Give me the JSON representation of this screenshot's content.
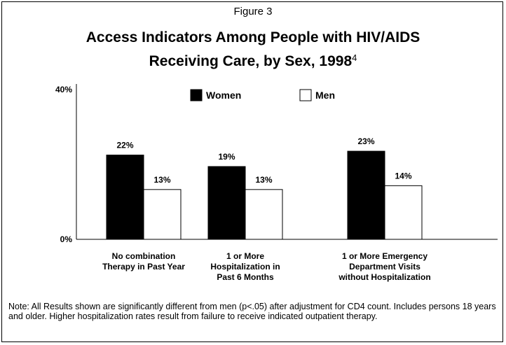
{
  "figure_label": "Figure 3",
  "title_line1": "Access Indicators Among People with HIV/AIDS",
  "title_line2": "Receiving Care, by Sex, 1998",
  "title_superscript": "4",
  "note": "Note: All Results shown are significantly different from men (p<.05) after adjustment for CD4 count.  Includes persons 18 years and older.  Higher hospitalization rates result from failure to receive indicated outpatient therapy.",
  "colors": {
    "women": "#000000",
    "men": "#ffffff",
    "axis": "#000000"
  },
  "chart_data": {
    "type": "bar",
    "categories": [
      [
        "No combination",
        "Therapy in Past Year"
      ],
      [
        "1 or More",
        "Hospitalization in",
        "Past 6 Months"
      ],
      [
        "1 or More Emergency",
        "Department Visits",
        "without Hospitalization"
      ]
    ],
    "series": [
      {
        "name": "Women",
        "values": [
          22,
          19,
          23
        ],
        "labels": [
          "22%",
          "19%",
          "23%"
        ]
      },
      {
        "name": "Men",
        "values": [
          13,
          13,
          14
        ],
        "labels": [
          "13%",
          "13%",
          "14%"
        ]
      }
    ],
    "ylim": [
      0,
      40
    ],
    "yticks": [
      "0%",
      "40%"
    ],
    "legend": "top",
    "grid": false,
    "xlabel": "",
    "ylabel": ""
  }
}
